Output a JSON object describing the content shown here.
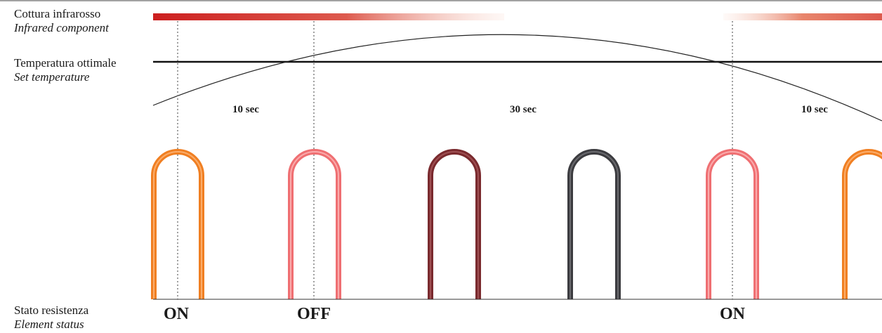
{
  "labels": {
    "infrared_it": "Cottura infrarosso",
    "infrared_en": "Infrared component",
    "set_temp_it": "Temperatura ottimale",
    "set_temp_en": "Set temperature",
    "status_it": "Stato resistenza",
    "status_en": "Element status"
  },
  "durations": [
    "10 sec",
    "30 sec",
    "10 sec"
  ],
  "status_states": [
    "ON",
    "OFF",
    "ON"
  ],
  "colors": {
    "infrared_bar": "#cc1f1f",
    "set_temp_line": "#111111",
    "temperature_curve": "#222222",
    "element_orange": "#f07f22",
    "element_pink": "#ef6f72",
    "element_maroon": "#7a2a2e",
    "element_dark": "#3c3c40"
  },
  "elements": [
    {
      "state": "hot",
      "color": "element_orange"
    },
    {
      "state": "cooling",
      "color": "element_pink"
    },
    {
      "state": "cooler",
      "color": "element_maroon"
    },
    {
      "state": "cold",
      "color": "element_dark"
    },
    {
      "state": "warming",
      "color": "element_pink"
    },
    {
      "state": "hot",
      "color": "element_orange"
    }
  ]
}
